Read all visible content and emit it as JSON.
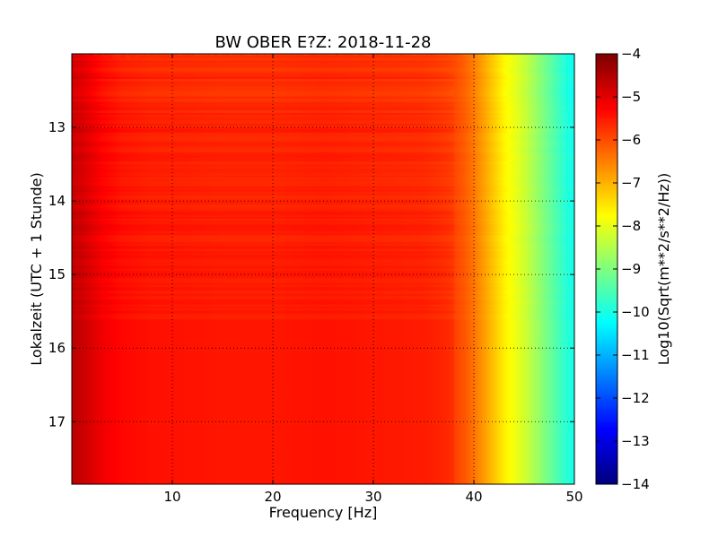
{
  "chart_data": {
    "type": "heatmap",
    "title": "BW OBER E?Z: 2018-11-28",
    "xlabel": "Frequency [Hz]",
    "ylabel": "Lokalzeit (UTC + 1 Stunde)",
    "xlim": [
      0,
      50
    ],
    "ylim": [
      17.85,
      12.0
    ],
    "x_ticks": [
      10,
      20,
      30,
      40,
      50
    ],
    "y_ticks": [
      13,
      14,
      15,
      16,
      17
    ],
    "grid": true,
    "colormap": "jet",
    "colorbar": {
      "label": "Log10(Sqrt(m**2/s**2/Hz))",
      "range": [
        -14,
        -4
      ],
      "ticks": [
        -4,
        -5,
        -6,
        -7,
        -8,
        -9,
        -10,
        -11,
        -12,
        -13,
        -14
      ]
    },
    "profile": {
      "frequency_hz": [
        0,
        1,
        2,
        3,
        5,
        8,
        10,
        15,
        20,
        25,
        30,
        35,
        37,
        38,
        39,
        40,
        41,
        42,
        43,
        44,
        45,
        46,
        47,
        48,
        49,
        50
      ],
      "log10_amplitude": [
        -5.0,
        -5.1,
        -5.3,
        -5.5,
        -5.7,
        -5.8,
        -5.8,
        -5.85,
        -5.85,
        -5.8,
        -5.85,
        -5.9,
        -6.0,
        -6.1,
        -6.3,
        -6.6,
        -7.0,
        -7.4,
        -7.8,
        -8.1,
        -8.4,
        -8.8,
        -9.2,
        -9.6,
        -10.0,
        -10.3
      ]
    }
  }
}
